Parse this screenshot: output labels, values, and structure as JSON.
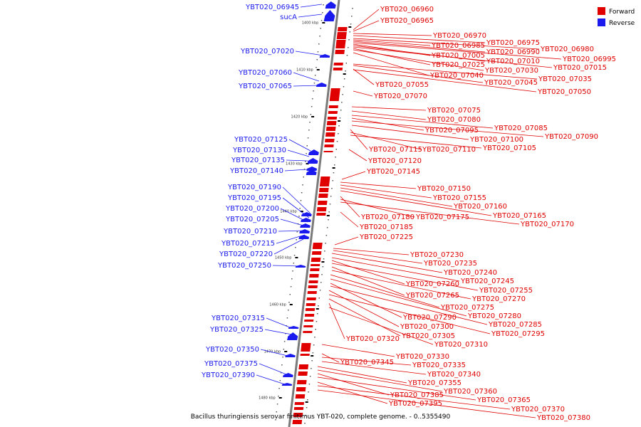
{
  "caption": "Bacillus thuringiensis serovar finitimus YBT-020, complete genome. - 0..5355490",
  "legend": {
    "forward_label": "Forward",
    "reverse_label": "Reverse",
    "forward_color": "#e00000",
    "reverse_color": "#1a1aee"
  },
  "axis_ticks": [
    {
      "label": "1400 kbp"
    },
    {
      "label": "1410 kbp"
    },
    {
      "label": "1420 kbp"
    },
    {
      "label": "1430 kbp"
    },
    {
      "label": "1440 kbp"
    },
    {
      "label": "1450 kbp"
    },
    {
      "label": "1460 kbp"
    },
    {
      "label": "1470 kbp"
    },
    {
      "label": "1480 kbp"
    }
  ],
  "reverse_genes": [
    "YBT020_06945",
    "sucA",
    "YBT020_07020",
    "YBT020_07060",
    "YBT020_07065",
    "YBT020_07125",
    "YBT020_07130",
    "YBT020_07135",
    "YBT020_07140",
    "YBT020_07190",
    "YBT020_07195",
    "YBT020_07200",
    "YBT020_07205",
    "YBT020_07210",
    "YBT020_07215",
    "YBT020_07220",
    "YBT020_07250",
    "YBT020_07315",
    "YBT020_07325",
    "YBT020_07350",
    "YBT020_07375",
    "YBT020_07390"
  ],
  "forward_genes": [
    "YBT020_06960",
    "YBT020_06965",
    "YBT020_06970",
    "YBT020_06975",
    "YBT020_06980",
    "YBT020_06985",
    "YBT020_06990",
    "YBT020_06995",
    "YBT020_07005",
    "YBT020_07010",
    "YBT020_07015",
    "YBT020_07025",
    "YBT020_07030",
    "YBT020_07040",
    "YBT020_07035",
    "YBT020_07045",
    "YBT020_07055",
    "YBT020_07050",
    "YBT020_07070",
    "YBT020_07075",
    "YBT020_07080",
    "YBT020_07085",
    "YBT020_07095",
    "YBT020_07090",
    "YBT020_07100",
    "YBT020_07115",
    "YBT020_07110",
    "YBT020_07105",
    "YBT020_07120",
    "YBT020_07145",
    "YBT020_07150",
    "YBT020_07155",
    "YBT020_07160",
    "YBT020_07165",
    "YBT020_07180",
    "YBT020_07175",
    "YBT020_07170",
    "YBT020_07185",
    "YBT020_07225",
    "YBT020_07230",
    "YBT020_07235",
    "YBT020_07240",
    "YBT020_07245",
    "YBT020_07260",
    "YBT020_07255",
    "YBT020_07265",
    "YBT020_07270",
    "YBT020_07275",
    "YBT020_07280",
    "YBT020_07290",
    "YBT020_07285",
    "YBT020_07300",
    "YBT020_07295",
    "YBT020_07305",
    "YBT020_07320",
    "YBT020_07310",
    "YBT020_07330",
    "YBT020_07345",
    "YBT020_07335",
    "YBT020_07340",
    "YBT020_07355",
    "YBT020_07360",
    "YBT020_07385",
    "YBT020_07365",
    "YBT020_07395",
    "YBT020_07370",
    "YBT020_07380"
  ]
}
